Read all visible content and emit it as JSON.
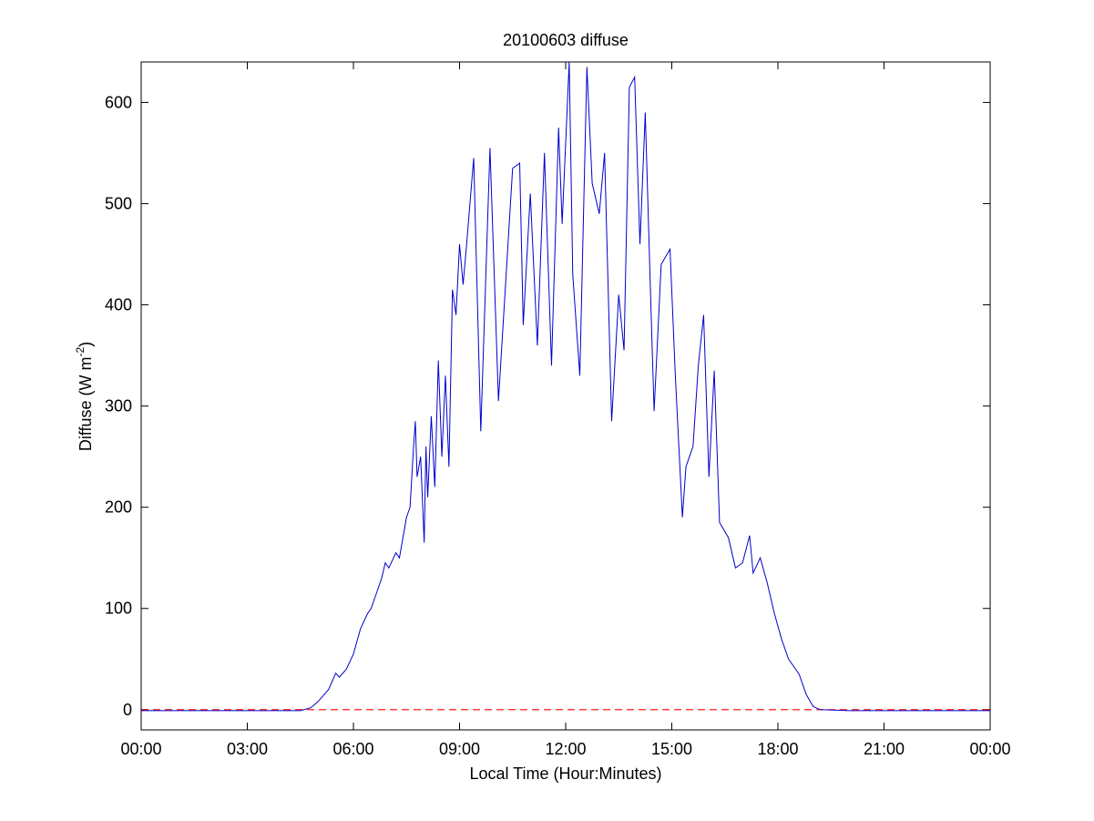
{
  "chart_data": {
    "type": "line",
    "title": "20100603 diffuse",
    "xlabel": "Local Time (Hour:Minutes)",
    "ylabel": "Diffuse (W m",
    "ylabel_sup": "-2",
    "ylabel_end": ")",
    "x": [
      0,
      2,
      4,
      4.5,
      4.8,
      5.0,
      5.3,
      5.5,
      5.6,
      5.8,
      6.0,
      6.2,
      6.4,
      6.5,
      6.6,
      6.8,
      6.9,
      7.0,
      7.2,
      7.3,
      7.5,
      7.6,
      7.7,
      7.75,
      7.8,
      7.9,
      8.0,
      8.05,
      8.1,
      8.2,
      8.3,
      8.4,
      8.5,
      8.6,
      8.7,
      8.8,
      8.9,
      9.0,
      9.1,
      9.2,
      9.4,
      9.6,
      9.86,
      10.1,
      10.3,
      10.5,
      10.7,
      10.8,
      11.0,
      11.2,
      11.4,
      11.6,
      11.8,
      11.9,
      12.1,
      12.2,
      12.4,
      12.6,
      12.75,
      12.95,
      13.1,
      13.3,
      13.5,
      13.65,
      13.8,
      13.95,
      14.1,
      14.25,
      14.4,
      14.5,
      14.7,
      14.95,
      15.1,
      15.3,
      15.4,
      15.6,
      15.75,
      15.9,
      16.05,
      16.2,
      16.35,
      16.6,
      16.8,
      17.0,
      17.2,
      17.3,
      17.5,
      17.7,
      17.9,
      18.1,
      18.3,
      18.5,
      18.6,
      18.8,
      19.0,
      19.2,
      20,
      22,
      24
    ],
    "series": [
      {
        "name": "diffuse",
        "color": "#0000cc",
        "values": [
          -1,
          -1,
          -1,
          -1,
          2,
          8,
          20,
          36,
          32,
          40,
          55,
          80,
          95,
          100,
          110,
          130,
          145,
          140,
          155,
          150,
          190,
          200,
          260,
          285,
          230,
          250,
          165,
          260,
          210,
          290,
          220,
          345,
          250,
          330,
          240,
          415,
          390,
          460,
          420,
          460,
          545,
          275,
          555,
          305,
          420,
          535,
          540,
          380,
          510,
          360,
          550,
          340,
          575,
          480,
          640,
          430,
          330,
          635,
          520,
          490,
          550,
          285,
          410,
          355,
          615,
          625,
          460,
          590,
          410,
          295,
          440,
          455,
          330,
          190,
          240,
          260,
          340,
          390,
          230,
          335,
          185,
          170,
          140,
          145,
          172,
          135,
          150,
          125,
          95,
          70,
          50,
          40,
          35,
          15,
          3,
          0,
          -1,
          -1,
          -1
        ]
      }
    ],
    "hlines": [
      {
        "value": 0,
        "color": "#ff0000"
      }
    ],
    "xlim": [
      0,
      24
    ],
    "xticks": [
      {
        "value": 0,
        "label": "00:00"
      },
      {
        "value": 3,
        "label": "03:00"
      },
      {
        "value": 6,
        "label": "06:00"
      },
      {
        "value": 9,
        "label": "09:00"
      },
      {
        "value": 12,
        "label": "12:00"
      },
      {
        "value": 15,
        "label": "15:00"
      },
      {
        "value": 18,
        "label": "18:00"
      },
      {
        "value": 21,
        "label": "21:00"
      },
      {
        "value": 24,
        "label": "00:00"
      }
    ],
    "ylim": [
      -20,
      640
    ],
    "yticks": [
      0,
      100,
      200,
      300,
      400,
      500,
      600
    ],
    "grid": false
  }
}
